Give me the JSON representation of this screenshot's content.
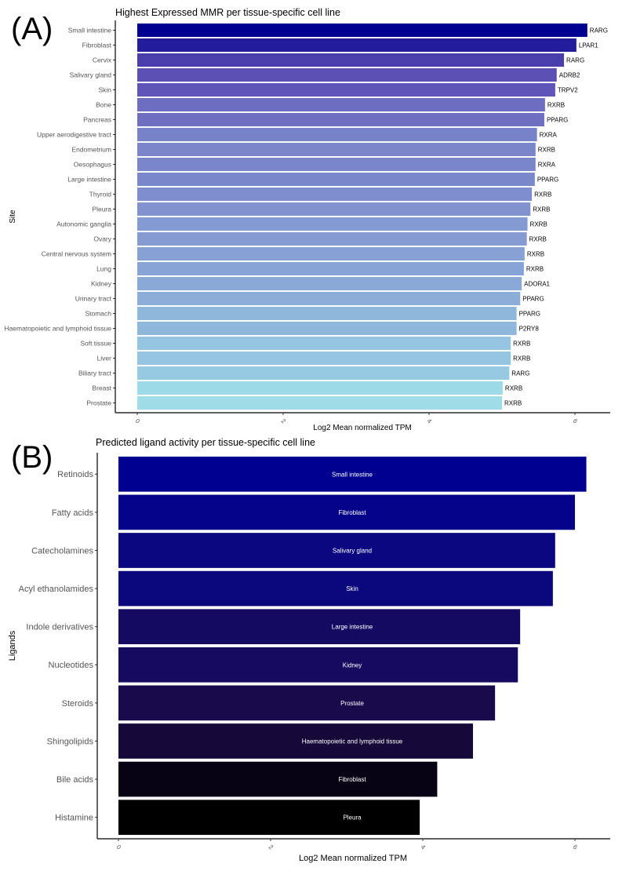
{
  "chart_data": [
    {
      "panel_label": "(A)",
      "type": "bar",
      "orientation": "horizontal",
      "title": "Highest Expressed MMR per tissue-specific cell line",
      "xlabel": "Log2 Mean normalized TPM",
      "ylabel": "Site",
      "xlim": [
        0,
        6.4
      ],
      "xticks": [
        "0",
        "2",
        "4",
        "6"
      ],
      "grid": false,
      "color_scale": [
        "#000090",
        "#5a4bb3",
        "#8192cf",
        "#9edce8"
      ],
      "categories": [
        "Small intestine",
        "Fibroblast",
        "Cervix",
        "Salivary gland",
        "Skin",
        "Bone",
        "Pancreas",
        "Upper aerodigestive tract",
        "Endometrium",
        "Oesophagus",
        "Large intestine",
        "Thyroid",
        "Pleura",
        "Autonomic ganglia",
        "Ovary",
        "Central nervous system",
        "Lung",
        "Kidney",
        "Urinary tract",
        "Stomach",
        "Haematopoietic and lymphoid tissue",
        "Soft tissue",
        "Liver",
        "Biliary tract",
        "Breast",
        "Prostate"
      ],
      "values": [
        6.17,
        6.02,
        5.85,
        5.75,
        5.73,
        5.59,
        5.58,
        5.48,
        5.46,
        5.46,
        5.45,
        5.41,
        5.39,
        5.35,
        5.34,
        5.31,
        5.3,
        5.27,
        5.25,
        5.2,
        5.2,
        5.12,
        5.12,
        5.1,
        5.01,
        5.0
      ],
      "bar_labels": [
        "RARG",
        "LPAR1",
        "RARG",
        "ADRB2",
        "TRPV2",
        "RXRB",
        "PPARG",
        "RXRA",
        "RXRB",
        "RXRA",
        "PPARG",
        "RXRB",
        "RXRB",
        "RXRB",
        "RXRB",
        "RXRB",
        "RXRB",
        "ADORA1",
        "PPARG",
        "PPARG",
        "P2RY8",
        "RXRB",
        "RXRB",
        "RARG",
        "RXRB",
        "RXRB"
      ]
    },
    {
      "panel_label": "(B)",
      "type": "bar",
      "orientation": "horizontal",
      "title": "Predicted ligand activity per tissue-specific cell line",
      "xlabel": "Log2 Mean normalized TPM",
      "ylabel": "Ligands",
      "xlim": [
        0,
        6.3
      ],
      "xticks": [
        "0",
        "2",
        "4",
        "6"
      ],
      "grid": false,
      "color_scale": [
        "#000090",
        "#0e0a7a",
        "#1a0a52",
        "#140830",
        "#000000"
      ],
      "categories": [
        "Retinoids",
        "Fatty acids",
        "Catecholamines",
        "Acyl ethanolamides",
        "Indole derivatives",
        "Nucleotides",
        "Steroids",
        "Shingolipids",
        "Bile acids",
        "Histamine"
      ],
      "values": [
        6.15,
        6.0,
        5.74,
        5.71,
        5.28,
        5.25,
        4.95,
        4.66,
        4.19,
        3.96
      ],
      "bar_labels": [
        "Small intestine",
        "Fibroblast",
        "Salivary gland",
        "Skin",
        "Large intestine",
        "Kidney",
        "Prostate",
        "Haematopoietic and lymphoid tissue",
        "Fibroblast",
        "Pleura"
      ]
    }
  ]
}
